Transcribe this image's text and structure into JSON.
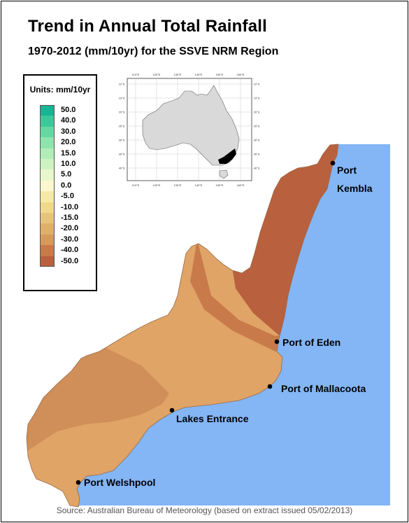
{
  "title": "Trend in Annual Total Rainfall",
  "subtitle": "1970-2012 (mm/10yr) for the SSVE NRM Region",
  "legend": {
    "title": "Units: mm/10yr",
    "items": [
      {
        "label": "50.0",
        "color": "#1ab394"
      },
      {
        "label": "40.0",
        "color": "#3ec79a"
      },
      {
        "label": "30.0",
        "color": "#66d7a2"
      },
      {
        "label": "20.0",
        "color": "#8fe3ad"
      },
      {
        "label": "15.0",
        "color": "#b2ecb8"
      },
      {
        "label": "10.0",
        "color": "#cff2c2"
      },
      {
        "label": "5.0",
        "color": "#e8f7cc"
      },
      {
        "label": "0.0",
        "color": "#fbf8d0"
      },
      {
        "label": "-5.0",
        "color": "#f6e9a8"
      },
      {
        "label": "-10.0",
        "color": "#f0d98c"
      },
      {
        "label": "-15.0",
        "color": "#e7c47c"
      },
      {
        "label": "-20.0",
        "color": "#dfb06c"
      },
      {
        "label": "-30.0",
        "color": "#d59a5c"
      },
      {
        "label": "-40.0",
        "color": "#c97a4b"
      },
      {
        "label": "-50.0",
        "color": "#b9603e"
      }
    ]
  },
  "places": [
    {
      "name": "Port\nKembla"
    },
    {
      "name": "Port of Eden"
    },
    {
      "name": "Port of Mallacoota"
    },
    {
      "name": "Lakes Entrance"
    },
    {
      "name": "Port Welshpool"
    }
  ],
  "inset": {
    "lon_ticks": [
      "110°E",
      "120°E",
      "130°E",
      "140°E",
      "150°E",
      "160°E"
    ],
    "lat_ticks": [
      "10°S",
      "15°S",
      "20°S",
      "25°S",
      "30°S",
      "35°S",
      "40°S"
    ]
  },
  "colors": {
    "ocean": "#84b5f5",
    "band_minus50": "#b9603e",
    "band_minus40": "#c97a4b",
    "band_minus30": "#d59a5c",
    "band_minus20": "#dfa466"
  },
  "source": "Source: Australian Bureau of Meteorology (based on extract issued 05/02/2013)"
}
